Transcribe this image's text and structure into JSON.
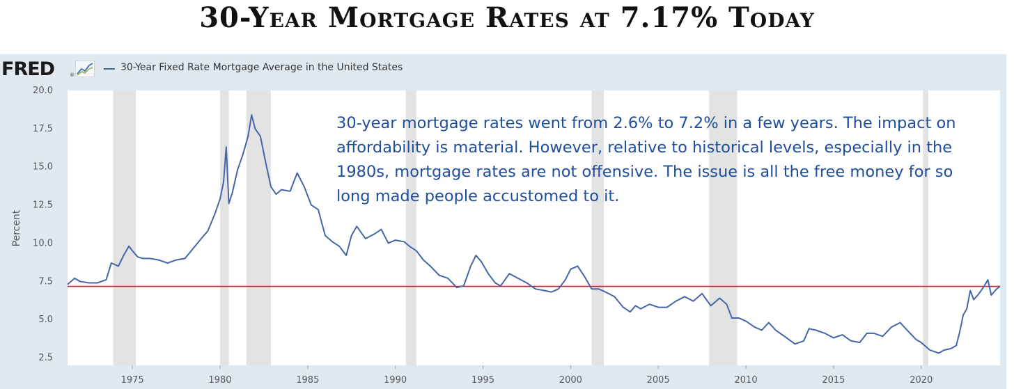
{
  "headline": "30-Year Mortgage Rates at 7.17% Today",
  "fred": {
    "logo": "FRED",
    "registered": "®",
    "icon": "line-chart-icon",
    "legend_label": "30-Year Fixed Rate Mortgage Average in the United States"
  },
  "annotation": "30-year mortgage rates went from 2.6% to 7.2% in a few years. The impact on affordability is material. However, relative to historical levels, especially in the 1980s, mortgage rates are not offensive. The issue is all the free money for so long made people accustomed to it.",
  "colors": {
    "series": "#4466a8",
    "reference_line": "#d22030",
    "recession_band": "#e3e3e3",
    "panel_background": "#e1e9f0",
    "annotation_text": "#1f4e9c"
  },
  "chart_data": {
    "type": "line",
    "title": "30-Year Fixed Rate Mortgage Average in the United States",
    "xlabel": "",
    "ylabel": "Percent",
    "xlim": [
      1971.3,
      2024.5
    ],
    "ylim": [
      2.0,
      20.0
    ],
    "x_ticks": [
      1975,
      1980,
      1985,
      1990,
      1995,
      2000,
      2005,
      2010,
      2015,
      2020
    ],
    "x_tick_labels": [
      "1975",
      "1980",
      "1985",
      "1990",
      "1995",
      "2000",
      "2005",
      "2010",
      "2015",
      "2020"
    ],
    "y_ticks": [
      2.5,
      5.0,
      7.5,
      10.0,
      12.5,
      15.0,
      17.5,
      20.0
    ],
    "y_tick_labels": [
      "2.5",
      "5.0",
      "7.5",
      "10.0",
      "12.5",
      "15.0",
      "17.5",
      "20.0"
    ],
    "grid": false,
    "legend": "top-left",
    "reference_line": {
      "y": 7.17,
      "color": "#d22030"
    },
    "recessions": [
      [
        1973.9,
        1975.2
      ],
      [
        1980.0,
        1980.5
      ],
      [
        1981.5,
        1982.9
      ],
      [
        1990.6,
        1991.2
      ],
      [
        2001.2,
        2001.9
      ],
      [
        2007.9,
        2009.5
      ],
      [
        2020.1,
        2020.4
      ]
    ],
    "series": [
      {
        "name": "30-Year Fixed Rate Mortgage Average in the United States",
        "x": [
          1971.3,
          1971.7,
          1972.0,
          1972.5,
          1973.0,
          1973.5,
          1973.8,
          1974.2,
          1974.5,
          1974.8,
          1975.0,
          1975.3,
          1975.6,
          1976.0,
          1976.5,
          1977.0,
          1977.5,
          1978.0,
          1978.5,
          1979.0,
          1979.3,
          1979.7,
          1980.0,
          1980.2,
          1980.35,
          1980.5,
          1980.7,
          1981.0,
          1981.3,
          1981.6,
          1981.8,
          1982.0,
          1982.3,
          1982.6,
          1982.9,
          1983.2,
          1983.5,
          1984.0,
          1984.4,
          1984.8,
          1985.2,
          1985.6,
          1986.0,
          1986.4,
          1986.8,
          1987.2,
          1987.5,
          1987.8,
          1988.3,
          1988.8,
          1989.2,
          1989.6,
          1990.0,
          1990.5,
          1990.8,
          1991.2,
          1991.6,
          1992.0,
          1992.5,
          1993.0,
          1993.5,
          1993.9,
          1994.3,
          1994.6,
          1994.9,
          1995.3,
          1995.7,
          1996.0,
          1996.5,
          1997.0,
          1997.5,
          1998.0,
          1998.5,
          1998.9,
          1999.3,
          1999.7,
          2000.0,
          2000.4,
          2000.8,
          2001.2,
          2001.6,
          2002.0,
          2002.5,
          2003.0,
          2003.4,
          2003.7,
          2004.0,
          2004.5,
          2005.0,
          2005.5,
          2006.0,
          2006.5,
          2007.0,
          2007.5,
          2008.0,
          2008.5,
          2008.9,
          2009.2,
          2009.6,
          2010.0,
          2010.5,
          2010.9,
          2011.3,
          2011.7,
          2012.2,
          2012.8,
          2013.3,
          2013.6,
          2014.0,
          2014.5,
          2015.0,
          2015.5,
          2016.0,
          2016.5,
          2016.9,
          2017.3,
          2017.8,
          2018.3,
          2018.8,
          2019.2,
          2019.7,
          2020.0,
          2020.5,
          2021.0,
          2021.3,
          2021.7,
          2022.0,
          2022.2,
          2022.4,
          2022.6,
          2022.8,
          2023.0,
          2023.3,
          2023.6,
          2023.8,
          2024.0,
          2024.3,
          2024.5
        ],
        "y": [
          7.3,
          7.7,
          7.5,
          7.4,
          7.4,
          7.6,
          8.7,
          8.5,
          9.2,
          9.8,
          9.5,
          9.1,
          9.0,
          9.0,
          8.9,
          8.7,
          8.9,
          9.0,
          9.7,
          10.4,
          10.8,
          11.9,
          12.9,
          14.0,
          16.3,
          12.6,
          13.3,
          14.8,
          15.8,
          17.0,
          18.4,
          17.5,
          17.0,
          15.3,
          13.7,
          13.2,
          13.5,
          13.4,
          14.6,
          13.7,
          12.5,
          12.2,
          10.5,
          10.1,
          9.8,
          9.2,
          10.5,
          11.1,
          10.3,
          10.6,
          10.9,
          10.0,
          10.2,
          10.1,
          9.8,
          9.5,
          8.9,
          8.5,
          7.9,
          7.7,
          7.1,
          7.2,
          8.5,
          9.2,
          8.8,
          8.0,
          7.4,
          7.2,
          8.0,
          7.7,
          7.4,
          7.0,
          6.9,
          6.8,
          7.0,
          7.6,
          8.3,
          8.5,
          7.8,
          7.0,
          7.0,
          6.8,
          6.5,
          5.8,
          5.5,
          5.9,
          5.7,
          6.0,
          5.8,
          5.8,
          6.2,
          6.5,
          6.2,
          6.7,
          5.9,
          6.4,
          6.0,
          5.1,
          5.1,
          4.9,
          4.5,
          4.3,
          4.8,
          4.3,
          3.9,
          3.4,
          3.6,
          4.4,
          4.3,
          4.1,
          3.8,
          4.0,
          3.6,
          3.5,
          4.1,
          4.1,
          3.9,
          4.5,
          4.8,
          4.3,
          3.7,
          3.5,
          3.0,
          2.8,
          3.0,
          3.1,
          3.3,
          4.2,
          5.3,
          5.7,
          6.9,
          6.3,
          6.7,
          7.2,
          7.6,
          6.6,
          7.0,
          7.17
        ]
      }
    ]
  }
}
